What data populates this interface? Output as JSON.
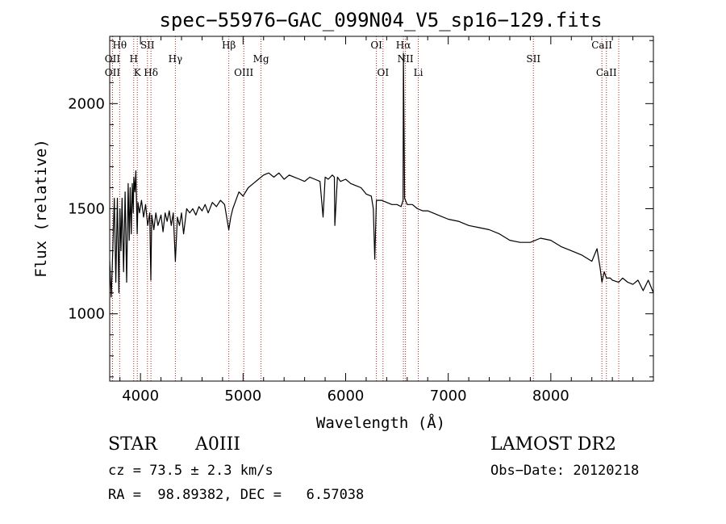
{
  "chart_data": {
    "type": "line",
    "title": "spec−55976−GAC_099N04_V5_sp16−129.fits",
    "xlabel": "Wavelength (Å)",
    "ylabel": "Flux (relative)",
    "xlim": [
      3700,
      9000
    ],
    "ylim": [
      680,
      2320
    ],
    "x_ticks": [
      4000,
      5000,
      6000,
      7000,
      8000
    ],
    "y_ticks": [
      1000,
      1500,
      2000
    ],
    "grid": false,
    "series": [
      {
        "x": [
          3700,
          3715,
          3730,
          3745,
          3760,
          3775,
          3790,
          3800,
          3810,
          3820,
          3835,
          3850,
          3865,
          3880,
          3890,
          3900,
          3910,
          3920,
          3930,
          3935,
          3945,
          3955,
          3968,
          3975,
          3990,
          4010,
          4030,
          4050,
          4070,
          4090,
          4101,
          4110,
          4130,
          4150,
          4170,
          4200,
          4220,
          4240,
          4260,
          4280,
          4300,
          4320,
          4340,
          4360,
          4380,
          4400,
          4420,
          4450,
          4480,
          4510,
          4540,
          4570,
          4600,
          4630,
          4660,
          4700,
          4740,
          4780,
          4820,
          4861,
          4880,
          4900,
          4930,
          4960,
          5000,
          5050,
          5100,
          5150,
          5200,
          5250,
          5300,
          5350,
          5400,
          5450,
          5500,
          5550,
          5600,
          5650,
          5700,
          5750,
          5780,
          5800,
          5830,
          5870,
          5890,
          5895,
          5920,
          5950,
          6000,
          6050,
          6100,
          6150,
          6200,
          6250,
          6270,
          6284,
          6300,
          6350,
          6400,
          6450,
          6500,
          6540,
          6560,
          6563,
          6575,
          6600,
          6650,
          6700,
          6750,
          6800,
          6850,
          6900,
          7000,
          7100,
          7200,
          7300,
          7400,
          7500,
          7600,
          7700,
          7800,
          7900,
          8000,
          8100,
          8200,
          8300,
          8400,
          8450,
          8480,
          8498,
          8520,
          8542,
          8580,
          8600,
          8662,
          8700,
          8750,
          8800,
          8850,
          8900,
          8950,
          9000
        ],
        "y": [
          1250,
          1080,
          1300,
          1550,
          1150,
          1550,
          1100,
          1500,
          1300,
          1550,
          1200,
          1580,
          1150,
          1620,
          1350,
          1600,
          1380,
          1620,
          1480,
          1650,
          1580,
          1680,
          1380,
          1530,
          1480,
          1540,
          1460,
          1520,
          1420,
          1480,
          1160,
          1470,
          1400,
          1480,
          1420,
          1470,
          1390,
          1480,
          1440,
          1490,
          1420,
          1480,
          1250,
          1460,
          1420,
          1480,
          1380,
          1500,
          1480,
          1500,
          1470,
          1510,
          1490,
          1520,
          1480,
          1530,
          1510,
          1540,
          1520,
          1400,
          1460,
          1500,
          1540,
          1580,
          1560,
          1600,
          1620,
          1640,
          1660,
          1670,
          1650,
          1670,
          1640,
          1660,
          1650,
          1640,
          1630,
          1650,
          1640,
          1630,
          1460,
          1650,
          1640,
          1660,
          1650,
          1420,
          1650,
          1630,
          1640,
          1620,
          1610,
          1600,
          1570,
          1560,
          1500,
          1260,
          1540,
          1540,
          1530,
          1520,
          1520,
          1510,
          1540,
          2240,
          1550,
          1520,
          1520,
          1500,
          1490,
          1490,
          1480,
          1470,
          1450,
          1440,
          1420,
          1410,
          1400,
          1380,
          1350,
          1340,
          1340,
          1360,
          1350,
          1320,
          1300,
          1280,
          1250,
          1310,
          1220,
          1150,
          1200,
          1170,
          1170,
          1160,
          1150,
          1170,
          1150,
          1140,
          1160,
          1110,
          1160,
          1100
        ]
      }
    ],
    "line_markers": [
      {
        "label": "OII",
        "wave": 3727,
        "row": 2
      },
      {
        "label": "OII",
        "wave": 3727,
        "row": 3
      },
      {
        "label": "Hθ",
        "wave": 3797,
        "row": 1
      },
      {
        "label": "H",
        "wave": 3934,
        "row": 2
      },
      {
        "label": "K",
        "wave": 3969,
        "row": 3
      },
      {
        "label": "SII",
        "wave": 4068,
        "row": 1
      },
      {
        "label": "Hδ",
        "wave": 4102,
        "row": 3
      },
      {
        "label": "Hγ",
        "wave": 4340,
        "row": 2
      },
      {
        "label": "Hβ",
        "wave": 4861,
        "row": 1
      },
      {
        "label": "OIII",
        "wave": 5007,
        "row": 3
      },
      {
        "label": "Mg",
        "wave": 5175,
        "row": 2
      },
      {
        "label": "OI",
        "wave": 6300,
        "row": 1
      },
      {
        "label": "OI",
        "wave": 6364,
        "row": 3
      },
      {
        "label": "Hα",
        "wave": 6563,
        "row": 1
      },
      {
        "label": "NII",
        "wave": 6583,
        "row": 2
      },
      {
        "label": "Li",
        "wave": 6708,
        "row": 3
      },
      {
        "label": "SII",
        "wave": 7830,
        "row": 2
      },
      {
        "label": "CaII",
        "wave": 8498,
        "row": 1
      },
      {
        "label": "CaII",
        "wave": 8542,
        "row": 3
      },
      {
        "label": "",
        "wave": 8662,
        "row": 0
      }
    ],
    "marker_color": "#b22222",
    "line_color": "#000000"
  },
  "info": {
    "class": "STAR",
    "subclass": "A0III",
    "survey": "LAMOST DR2",
    "cz": "cz = 73.5 ± 2.3 km/s",
    "obs_date": "Obs−Date: 20120218",
    "radec": "RA =  98.89382, DEC =   6.57038"
  }
}
